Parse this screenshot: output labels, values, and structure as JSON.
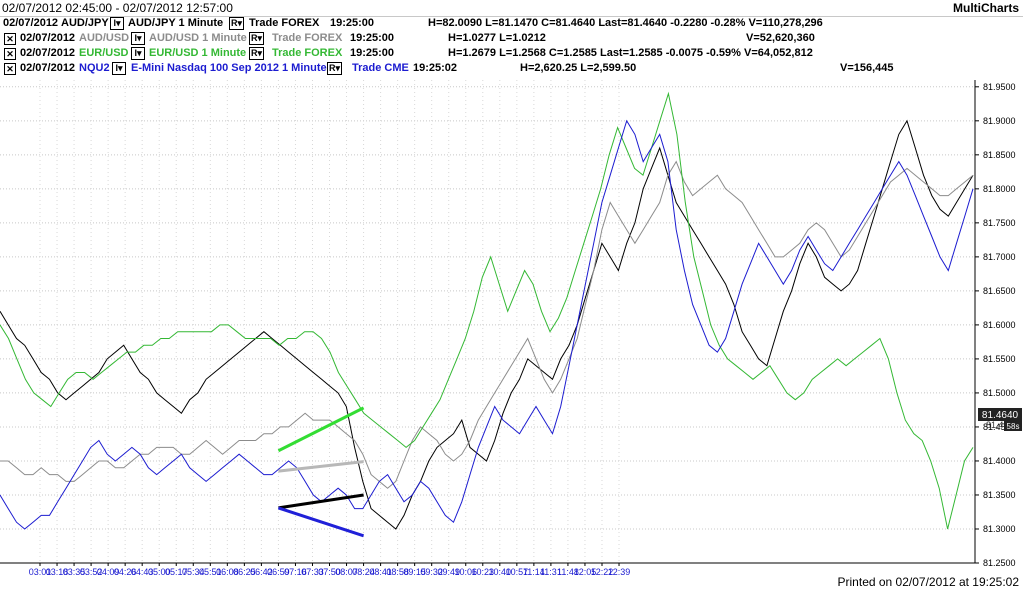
{
  "header": {
    "range": "02/07/2012 02:45:00 - 02/07/2012 12:57:00",
    "brand": "MultiCharts"
  },
  "legend": [
    {
      "date": "02/07/2012",
      "symbol": "AUD/JPY",
      "desc": "AUD/JPY 1 Minute",
      "source": "Trade FOREX",
      "time": "19:25:00",
      "stats": "H=82.0090  L=81.1470  C=81.4640  Last=81.4640  -0.2280  -0.28%  V=110,278,296",
      "color": "#000000",
      "box": "none"
    },
    {
      "date": "02/07/2012",
      "symbol": "AUD/USD",
      "desc": "AUD/USD 1 Minute",
      "source": "Trade FOREX",
      "time": "19:25:00",
      "stats": "H=1.0277  L=1.0212",
      "volume": "V=52,620,360",
      "color": "#8c8c8c",
      "box": "x"
    },
    {
      "date": "02/07/2012",
      "symbol": "EUR/USD",
      "desc": "EUR/USD 1 Minute",
      "source": "Trade FOREX",
      "time": "19:25:00",
      "stats": "H=1.2679  L=1.2568  C=1.2585  Last=1.2585  -0.0075  -0.59%  V=64,052,812",
      "color": "#34b834",
      "box": "x"
    },
    {
      "date": "02/07/2012",
      "symbol": "NQU2",
      "desc": "E-Mini Nasdaq 100 Sep 2012 1 Minute",
      "source": "Trade CME",
      "time": "19:25:02",
      "stats": "H=2,620.25  L=2,599.50",
      "volume": "V=156,445",
      "color": "#1c1cd0",
      "box": "x"
    }
  ],
  "price_tag": {
    "value": "81.4640",
    "sub": "81.4",
    "timer": "58s"
  },
  "footer": {
    "printed": "Printed on 02/07/2012 at 19:25:02"
  },
  "chart_data": {
    "type": "line",
    "y_axis_ticks": [
      "81.9500",
      "81.9000",
      "81.8500",
      "81.8000",
      "81.7500",
      "81.7000",
      "81.6500",
      "81.6000",
      "81.5500",
      "81.5000",
      "81.4500",
      "81.4000",
      "81.3500",
      "81.3000",
      "81.2500"
    ],
    "ylim": [
      81.25,
      81.96
    ],
    "x_axis_ticks": [
      "03:01",
      "03:18",
      "03:35",
      "03:52",
      "04:09",
      "04:26",
      "04:43",
      "05:00",
      "05:17",
      "05:34",
      "05:51",
      "06:08",
      "06:25",
      "06:42",
      "06:59",
      "07:16",
      "07:33",
      "07:50",
      "08:07",
      "08:24",
      "08:41",
      "08:58",
      "09:15",
      "09:32",
      "09:49",
      "10:06",
      "10:23",
      "10:40",
      "10:57",
      "11:14",
      "11:31",
      "11:48",
      "12:05",
      "12:22",
      "12:39"
    ],
    "grid": "dotted",
    "series": [
      {
        "name": "AUD/JPY",
        "color": "#000000",
        "values": [
          81.62,
          81.6,
          81.58,
          81.57,
          81.55,
          81.53,
          81.52,
          81.5,
          81.49,
          81.5,
          81.51,
          81.52,
          81.53,
          81.55,
          81.56,
          81.57,
          81.55,
          81.53,
          81.52,
          81.5,
          81.49,
          81.48,
          81.47,
          81.49,
          81.5,
          81.52,
          81.53,
          81.54,
          81.55,
          81.56,
          81.57,
          81.58,
          81.59,
          81.58,
          81.57,
          81.56,
          81.55,
          81.54,
          81.53,
          81.52,
          81.51,
          81.5,
          81.48,
          81.42,
          81.37,
          81.33,
          81.32,
          81.31,
          81.3,
          81.32,
          81.35,
          81.37,
          81.4,
          81.42,
          81.43,
          81.44,
          81.46,
          81.42,
          81.41,
          81.4,
          81.43,
          81.47,
          81.5,
          81.52,
          81.55,
          81.54,
          81.53,
          81.52,
          81.55,
          81.57,
          81.6,
          81.64,
          81.68,
          81.72,
          81.7,
          81.68,
          81.72,
          81.75,
          81.8,
          81.83,
          81.86,
          81.82,
          81.78,
          81.76,
          81.74,
          81.72,
          81.7,
          81.68,
          81.66,
          81.63,
          81.59,
          81.57,
          81.55,
          81.54,
          81.58,
          81.62,
          81.65,
          81.69,
          81.72,
          81.7,
          81.67,
          81.66,
          81.65,
          81.66,
          81.68,
          81.72,
          81.76,
          81.8,
          81.84,
          81.88,
          81.9,
          81.86,
          81.82,
          81.79,
          81.77,
          81.76,
          81.78,
          81.8,
          81.82
        ]
      },
      {
        "name": "AUD/USD",
        "color": "#8c8c8c",
        "values": [
          81.4,
          81.4,
          81.39,
          81.38,
          81.38,
          81.39,
          81.38,
          81.38,
          81.37,
          81.37,
          81.38,
          81.39,
          81.4,
          81.4,
          81.39,
          81.39,
          81.4,
          81.41,
          81.41,
          81.42,
          81.42,
          81.42,
          81.41,
          81.41,
          81.42,
          81.43,
          81.42,
          81.41,
          81.42,
          81.43,
          81.43,
          81.43,
          81.44,
          81.44,
          81.45,
          81.45,
          81.46,
          81.47,
          81.46,
          81.46,
          81.46,
          81.45,
          81.44,
          81.43,
          81.41,
          81.38,
          81.37,
          81.36,
          81.37,
          81.4,
          81.43,
          81.45,
          81.44,
          81.43,
          81.41,
          81.4,
          81.41,
          81.43,
          81.46,
          81.48,
          81.5,
          81.52,
          81.54,
          81.56,
          81.58,
          81.55,
          81.52,
          81.5,
          81.52,
          81.55,
          81.58,
          81.63,
          81.68,
          81.74,
          81.78,
          81.76,
          81.74,
          81.72,
          81.74,
          81.76,
          81.78,
          81.82,
          81.84,
          81.81,
          81.79,
          81.8,
          81.81,
          81.82,
          81.8,
          81.79,
          81.78,
          81.76,
          81.74,
          81.72,
          81.7,
          81.7,
          81.71,
          81.72,
          81.74,
          81.75,
          81.74,
          81.72,
          81.7,
          81.71,
          81.73,
          81.75,
          81.77,
          81.79,
          81.81,
          81.82,
          81.83,
          81.82,
          81.81,
          81.8,
          81.79,
          81.79,
          81.8,
          81.81,
          81.82
        ]
      },
      {
        "name": "EUR/USD",
        "color": "#34b834",
        "values": [
          81.6,
          81.58,
          81.55,
          81.52,
          81.5,
          81.49,
          81.48,
          81.5,
          81.52,
          81.53,
          81.53,
          81.52,
          81.53,
          81.54,
          81.55,
          81.56,
          81.56,
          81.57,
          81.57,
          81.58,
          81.58,
          81.59,
          81.59,
          81.59,
          81.59,
          81.59,
          81.6,
          81.6,
          81.59,
          81.58,
          81.58,
          81.58,
          81.58,
          81.57,
          81.58,
          81.58,
          81.59,
          81.59,
          81.58,
          81.56,
          81.53,
          81.51,
          81.49,
          81.47,
          81.46,
          81.45,
          81.44,
          81.43,
          81.42,
          81.43,
          81.45,
          81.47,
          81.49,
          81.52,
          81.55,
          81.58,
          81.62,
          81.67,
          81.7,
          81.66,
          81.62,
          81.65,
          81.68,
          81.66,
          81.62,
          81.59,
          81.61,
          81.64,
          81.68,
          81.72,
          81.76,
          81.8,
          81.85,
          81.89,
          81.86,
          81.83,
          81.82,
          81.86,
          81.9,
          81.94,
          81.88,
          81.78,
          81.7,
          81.65,
          81.6,
          81.57,
          81.55,
          81.54,
          81.53,
          81.52,
          81.53,
          81.54,
          81.52,
          81.5,
          81.49,
          81.5,
          81.52,
          81.53,
          81.54,
          81.55,
          81.54,
          81.55,
          81.56,
          81.57,
          81.58,
          81.55,
          81.5,
          81.46,
          81.44,
          81.43,
          81.4,
          81.36,
          81.3,
          81.35,
          81.4,
          81.42
        ]
      },
      {
        "name": "NQU2",
        "color": "#1c1cd0",
        "values": [
          81.35,
          81.33,
          81.31,
          81.3,
          81.31,
          81.32,
          81.32,
          81.34,
          81.36,
          81.38,
          81.4,
          81.42,
          81.43,
          81.41,
          81.4,
          81.41,
          81.42,
          81.41,
          81.39,
          81.38,
          81.39,
          81.4,
          81.41,
          81.39,
          81.38,
          81.37,
          81.38,
          81.39,
          81.4,
          81.41,
          81.4,
          81.39,
          81.38,
          81.38,
          81.39,
          81.4,
          81.39,
          81.37,
          81.35,
          81.34,
          81.35,
          81.36,
          81.35,
          81.33,
          81.33,
          81.35,
          81.37,
          81.38,
          81.36,
          81.34,
          81.35,
          81.37,
          81.36,
          81.34,
          81.32,
          81.31,
          81.34,
          81.38,
          81.42,
          81.45,
          81.48,
          81.46,
          81.45,
          81.44,
          81.46,
          81.48,
          81.46,
          81.44,
          81.48,
          81.54,
          81.6,
          81.66,
          81.72,
          81.78,
          81.82,
          81.86,
          81.9,
          81.88,
          81.84,
          81.86,
          81.88,
          81.84,
          81.74,
          81.68,
          81.63,
          81.6,
          81.57,
          81.56,
          81.58,
          81.62,
          81.66,
          81.69,
          81.72,
          81.7,
          81.68,
          81.66,
          81.68,
          81.71,
          81.73,
          81.71,
          81.69,
          81.68,
          81.7,
          81.72,
          81.74,
          81.76,
          81.78,
          81.8,
          81.82,
          81.84,
          81.82,
          81.79,
          81.76,
          81.73,
          81.7,
          81.68,
          81.72,
          81.76,
          81.8
        ]
      }
    ],
    "trendlines": [
      {
        "color": "#33dd33",
        "from": {
          "x": "06:59",
          "y": 81.415
        },
        "to": {
          "x": "08:24",
          "y": 81.478
        }
      },
      {
        "color": "#b8b8b8",
        "from": {
          "x": "06:59",
          "y": 81.385
        },
        "to": {
          "x": "08:24",
          "y": 81.399
        }
      },
      {
        "color": "#000000",
        "from": {
          "x": "06:59",
          "y": 81.331
        },
        "to": {
          "x": "08:24",
          "y": 81.35
        }
      },
      {
        "color": "#2020d8",
        "from": {
          "x": "06:59",
          "y": 81.331
        },
        "to": {
          "x": "08:24",
          "y": 81.29
        }
      }
    ],
    "price_marker": "81.4640"
  }
}
